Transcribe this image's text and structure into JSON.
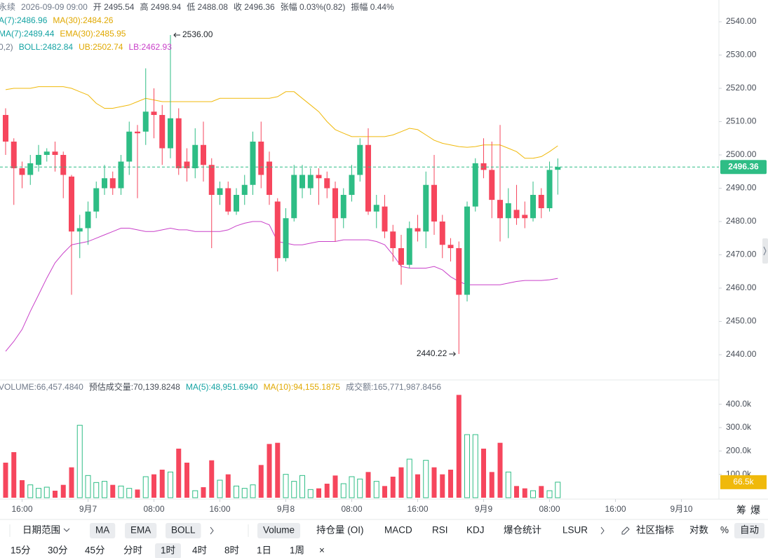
{
  "legend": [
    [
      {
        "text": "永续",
        "color": "#707a8a"
      },
      {
        "text": "2026-09-09 09:00",
        "color": "#707a8a"
      },
      {
        "text": "开 2495.54",
        "color": "#474d57"
      },
      {
        "text": "高 2498.94",
        "color": "#474d57"
      },
      {
        "text": "低 2488.08",
        "color": "#474d57"
      },
      {
        "text": "收 2496.36",
        "color": "#474d57"
      },
      {
        "text": "张幅 0.03%(0.82)",
        "color": "#474d57"
      },
      {
        "text": "振幅 0.44%",
        "color": "#474d57"
      }
    ],
    [
      {
        "text": "A(7):2486.96",
        "color": "#14a3a3"
      },
      {
        "text": "MA(30):2484.26",
        "color": "#e0a800"
      }
    ],
    [
      {
        "text": "MA(7):2489.44",
        "color": "#14a3a3"
      },
      {
        "text": "EMA(30):2485.95",
        "color": "#e0a800"
      }
    ],
    [
      {
        "text": "0,2)",
        "color": "#707a8a"
      },
      {
        "text": "BOLL:2482.84",
        "color": "#14a3a3"
      },
      {
        "text": "UB:2502.74",
        "color": "#e0a800"
      },
      {
        "text": "LB:2462.93",
        "color": "#c940c9"
      }
    ]
  ],
  "volume_legend": [
    {
      "text": "VOLUME:66,457.4840",
      "color": "#707a8a"
    },
    {
      "text": "预估成交量:70,139.8248",
      "color": "#474d57"
    },
    {
      "text": "MA(5):48,951.6940",
      "color": "#14a3a3"
    },
    {
      "text": "MA(10):94,155.1875",
      "color": "#e0a800"
    },
    {
      "text": "成交额:165,771,987.8456",
      "color": "#707a8a"
    }
  ],
  "chart_data": [
    {
      "type": "candlestick",
      "up_color": "#2ebd85",
      "down_color": "#f6465d",
      "xlim": [
        -0.68,
        86.55
      ],
      "xticks": [
        {
          "value": 2,
          "label": "16:00"
        },
        {
          "value": 10,
          "label": "9月7"
        },
        {
          "value": 18,
          "label": "08:00"
        },
        {
          "value": 26,
          "label": "16:00"
        },
        {
          "value": 34,
          "label": "9月8"
        },
        {
          "value": 42,
          "label": "08:00"
        },
        {
          "value": 50,
          "label": "16:00"
        },
        {
          "value": 58,
          "label": "9月9"
        },
        {
          "value": 66,
          "label": "08:00"
        },
        {
          "value": 74,
          "label": "16:00"
        },
        {
          "value": 82,
          "label": "9月10"
        }
      ],
      "ylim": [
        2432.84,
        2546.53
      ],
      "yticks": [
        {
          "value": 2440,
          "label": "2440.00"
        },
        {
          "value": 2450,
          "label": "2450.00"
        },
        {
          "value": 2460,
          "label": "2460.00"
        },
        {
          "value": 2470,
          "label": "2470.00"
        },
        {
          "value": 2480,
          "label": "2480.00"
        },
        {
          "value": 2490,
          "label": "2490.00"
        },
        {
          "value": 2500,
          "label": "2500.00"
        },
        {
          "value": 2510,
          "label": "2510.00"
        },
        {
          "value": 2520,
          "label": "2520.00"
        },
        {
          "value": 2530,
          "label": "2530.00"
        },
        {
          "value": 2540,
          "label": "2540.00"
        }
      ],
      "last_price": 2496.36,
      "high_label": {
        "value": 2536,
        "label": "2536.00"
      },
      "low_label": {
        "value": 2440.22,
        "label": "2440.22"
      },
      "open": [
        2512,
        2504,
        2496,
        2494,
        2497,
        2500,
        2501,
        2500,
        2493.5,
        2477,
        2478,
        2483,
        2490,
        2493,
        2490,
        2498,
        2507,
        2507,
        2513,
        2512,
        2502,
        2511,
        2498,
        2496,
        2503,
        2497,
        2488,
        2490,
        2483,
        2488,
        2491,
        2504,
        2498,
        2486,
        2469,
        2481,
        2490,
        2490,
        2494,
        2493,
        2490,
        2481,
        2488,
        2494,
        2503,
        2483,
        2484.5,
        2477,
        2472,
        2467,
        2478,
        2477,
        2491,
        2480,
        2473,
        2472,
        2458,
        2484.5,
        2497.5,
        2495.5,
        2486.5,
        2481,
        2483.5,
        2482,
        2481,
        2488,
        2484,
        2495.54
      ],
      "high": [
        2514,
        2505,
        2498,
        2500,
        2503,
        2502,
        2504,
        2501,
        2494,
        2482,
        2486,
        2492,
        2497,
        2495,
        2500,
        2510,
        2509,
        2526,
        2520,
        2515,
        2536,
        2514,
        2502,
        2508,
        2510,
        2499,
        2492,
        2492,
        2490,
        2494,
        2507,
        2510,
        2501,
        2487,
        2484,
        2497,
        2497,
        2496,
        2496,
        2495,
        2492,
        2490,
        2497,
        2505,
        2508,
        2488,
        2488,
        2479,
        2476,
        2480,
        2482,
        2495,
        2500,
        2482,
        2475,
        2474,
        2486,
        2499,
        2505,
        2504,
        2509,
        2490,
        2491,
        2486,
        2492,
        2490,
        2498,
        2498.94
      ],
      "low": [
        2500,
        2485,
        2490,
        2491,
        2495,
        2498,
        2495,
        2487,
        2458,
        2469,
        2473,
        2481,
        2488,
        2488,
        2488,
        2494,
        2487,
        2503,
        2505,
        2497,
        2499,
        2494,
        2492,
        2493,
        2492,
        2472,
        2485,
        2482,
        2482,
        2485,
        2488,
        2490,
        2485,
        2465,
        2468,
        2480,
        2487,
        2488,
        2485,
        2487,
        2474,
        2478,
        2486,
        2492,
        2482,
        2478,
        2475,
        2468,
        2461,
        2466,
        2474,
        2472,
        2476,
        2469,
        2468,
        2440.22,
        2456,
        2483,
        2493,
        2481,
        2474,
        2475,
        2479,
        2478,
        2480,
        2481,
        2483,
        2488.08
      ],
      "close": [
        2504,
        2496,
        2494,
        2497.5,
        2500,
        2501,
        2500,
        2494,
        2477,
        2478,
        2483,
        2490,
        2493,
        2490,
        2498,
        2507,
        2506.5,
        2513,
        2512,
        2502,
        2511,
        2496,
        2496,
        2503,
        2497,
        2488,
        2490,
        2483,
        2488,
        2491,
        2504,
        2494,
        2488,
        2469,
        2481,
        2494,
        2494,
        2494,
        2493,
        2490,
        2481,
        2488,
        2494,
        2503,
        2483,
        2485,
        2477,
        2472,
        2467,
        2478,
        2477,
        2491,
        2480,
        2473,
        2472,
        2458,
        2484.5,
        2497.5,
        2495.5,
        2486.5,
        2481,
        2485.5,
        2481,
        2481,
        2488,
        2484,
        2495.5,
        2496.36
      ],
      "overlays": [
        {
          "color": "#f0b90b",
          "values": [
            2519.6,
            2520,
            2520,
            2520,
            2520.5,
            2520.5,
            2520.5,
            2520.5,
            2520,
            2519,
            2518,
            2515.5,
            2514,
            2514,
            2514.5,
            2515,
            2516,
            2517,
            2516.5,
            2516,
            2516,
            2516,
            2516,
            2516,
            2516,
            2516,
            2517,
            2517,
            2517,
            2517,
            2517,
            2517,
            2517,
            2517.5,
            2519,
            2519,
            2517,
            2515,
            2513,
            2510,
            2507.6,
            2506.5,
            2505.5,
            2505.5,
            2505.5,
            2505.5,
            2505.5,
            2506,
            2507,
            2508,
            2507.6,
            2506,
            2504.4,
            2503.5,
            2503,
            2502.5,
            2502.3,
            2502.5,
            2503,
            2503,
            2503,
            2502,
            2501,
            2499,
            2499,
            2499.5,
            2501,
            2502.74
          ]
        },
        {
          "color": "#c940c9",
          "values": [
            2441,
            2444,
            2447.6,
            2453,
            2458,
            2463,
            2467.6,
            2470.5,
            2473,
            2473.5,
            2474,
            2475,
            2476,
            2477,
            2478,
            2478,
            2477.5,
            2477,
            2477,
            2477.5,
            2478,
            2477.5,
            2477.5,
            2477,
            2477,
            2477,
            2477,
            2477.5,
            2478.7,
            2479.5,
            2480,
            2480,
            2479,
            2474,
            2473.5,
            2473,
            2473,
            2473.5,
            2474,
            2474,
            2474,
            2474.5,
            2474.5,
            2474.5,
            2474.5,
            2474,
            2473,
            2470,
            2466.5,
            2466,
            2466,
            2466,
            2466.5,
            2465.5,
            2463.4,
            2462,
            2461,
            2461,
            2461,
            2461,
            2461,
            2461.5,
            2462,
            2462.3,
            2462.3,
            2462.3,
            2462.5,
            2462.93
          ]
        }
      ]
    },
    {
      "type": "bar",
      "ylim": [
        0,
        495000
      ],
      "yticks": [
        {
          "value": 100000,
          "label": "100.0k"
        },
        {
          "value": 200000,
          "label": "200.0k"
        },
        {
          "value": 300000,
          "label": "300.0k"
        },
        {
          "value": 400000,
          "label": "400.0k"
        }
      ],
      "last_value": {
        "value": 66457.484,
        "label": "66.5k"
      },
      "last_color": "#f0b90b",
      "values": [
        150000,
        195000,
        75000,
        55000,
        40000,
        45000,
        30000,
        55000,
        130000,
        310000,
        95000,
        65000,
        70000,
        55000,
        50000,
        40000,
        35000,
        90000,
        100000,
        120000,
        110000,
        210000,
        150000,
        30000,
        45000,
        160000,
        75000,
        100000,
        50000,
        40000,
        55000,
        140000,
        230000,
        235000,
        100000,
        70000,
        95000,
        35000,
        40000,
        60000,
        95000,
        60000,
        90000,
        80000,
        110000,
        70000,
        50000,
        90000,
        130000,
        165000,
        100000,
        160000,
        130000,
        100000,
        120000,
        440000,
        270000,
        270000,
        210000,
        110000,
        235000,
        110000,
        50000,
        40000,
        30000,
        50000,
        30000,
        66457.484
      ]
    }
  ],
  "side_labels": [
    "筹",
    "爆"
  ],
  "toolbar": {
    "row1": [
      {
        "text": "日期范围",
        "active": false
      },
      {
        "text": "MA",
        "active": true
      },
      {
        "text": "EMA",
        "active": true
      },
      {
        "text": "BOLL",
        "active": true
      },
      {
        "text": "Volume",
        "active": true
      },
      {
        "text": "持仓量 (OI)",
        "active": false
      },
      {
        "text": "MACD",
        "active": false
      },
      {
        "text": "RSI",
        "active": false
      },
      {
        "text": "KDJ",
        "active": false
      },
      {
        "text": "爆仓统计",
        "active": false
      },
      {
        "text": "LSUR",
        "active": false
      },
      {
        "text": "社区指标",
        "active": false
      },
      {
        "text": "对数",
        "active": false
      },
      {
        "text": "%",
        "active": false
      },
      {
        "text": "自动",
        "active": true
      }
    ],
    "row2": [
      {
        "text": "15分",
        "active": false
      },
      {
        "text": "30分",
        "active": false
      },
      {
        "text": "45分",
        "active": false
      },
      {
        "text": "分时",
        "active": false
      },
      {
        "text": "1时",
        "active": true
      },
      {
        "text": "4时",
        "active": false
      },
      {
        "text": "8时",
        "active": false
      },
      {
        "text": "1日",
        "active": false
      },
      {
        "text": "1周",
        "active": false
      },
      {
        "text": "×",
        "active": false
      }
    ]
  }
}
